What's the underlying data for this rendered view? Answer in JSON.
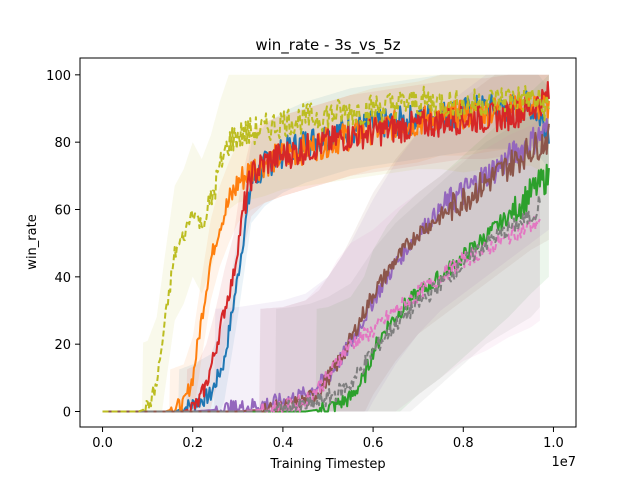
{
  "chart_data": {
    "type": "line",
    "title": "win_rate - 3s_vs_5z",
    "xlabel": "Training Timestep",
    "ylabel": "win_rate",
    "x_offset_label": "1e7",
    "xlim": [
      -0.05,
      1.05
    ],
    "ylim": [
      -4.6,
      105
    ],
    "x_ticks": [
      0.0,
      0.2,
      0.4,
      0.6,
      0.8,
      1.0
    ],
    "x_tick_labels": [
      "0.0",
      "0.2",
      "0.4",
      "0.6",
      "0.8",
      "1.0"
    ],
    "y_ticks": [
      0,
      20,
      40,
      60,
      80,
      100
    ],
    "y_tick_labels": [
      "0",
      "20",
      "40",
      "60",
      "80",
      "100"
    ],
    "grid": false,
    "legend": "none",
    "series": [
      {
        "color": "#1f77b4",
        "dash": "solid",
        "band": 12,
        "x": [
          0.0,
          0.16,
          0.2,
          0.24,
          0.27,
          0.3,
          0.33,
          0.36,
          0.4,
          0.45,
          0.5,
          0.55,
          0.6,
          0.65,
          0.7,
          0.75,
          0.8,
          0.85,
          0.9,
          0.95,
          0.99
        ],
        "y": [
          0,
          0,
          2,
          5,
          15,
          40,
          68,
          73,
          77,
          80,
          82,
          84,
          85,
          86,
          87,
          88,
          89,
          90,
          90,
          91,
          84
        ]
      },
      {
        "color": "#ff7f0e",
        "dash": "solid",
        "band": 12,
        "x": [
          0.0,
          0.14,
          0.18,
          0.2,
          0.22,
          0.24,
          0.26,
          0.28,
          0.3,
          0.33,
          0.36,
          0.4,
          0.45,
          0.5,
          0.55,
          0.6,
          0.65,
          0.7,
          0.75,
          0.8,
          0.85,
          0.9,
          0.95,
          0.99
        ],
        "y": [
          0,
          0,
          2,
          10,
          28,
          45,
          55,
          62,
          68,
          72,
          74,
          76,
          78,
          80,
          82,
          84,
          85,
          86,
          88,
          88,
          89,
          90,
          91,
          90
        ]
      },
      {
        "color": "#2ca02c",
        "dash": "solid",
        "band": 30,
        "x": [
          0.0,
          0.45,
          0.5,
          0.55,
          0.58,
          0.6,
          0.63,
          0.66,
          0.7,
          0.75,
          0.8,
          0.85,
          0.9,
          0.95,
          0.99
        ],
        "y": [
          0,
          0,
          1,
          4,
          10,
          18,
          25,
          30,
          35,
          40,
          46,
          52,
          58,
          65,
          70
        ]
      },
      {
        "color": "#d62728",
        "dash": "solid",
        "band": 12,
        "x": [
          0.0,
          0.18,
          0.21,
          0.23,
          0.25,
          0.27,
          0.29,
          0.31,
          0.33,
          0.36,
          0.4,
          0.45,
          0.5,
          0.55,
          0.6,
          0.65,
          0.7,
          0.75,
          0.8,
          0.85,
          0.9,
          0.95,
          0.99
        ],
        "y": [
          0,
          0,
          2,
          8,
          18,
          30,
          40,
          58,
          70,
          74,
          76,
          78,
          80,
          82,
          83,
          84,
          85,
          86,
          87,
          87,
          88,
          90,
          94
        ]
      },
      {
        "color": "#9467bd",
        "dash": "solid",
        "band": 30,
        "x": [
          0.0,
          0.2,
          0.3,
          0.35,
          0.4,
          0.45,
          0.5,
          0.55,
          0.6,
          0.65,
          0.7,
          0.75,
          0.8,
          0.85,
          0.9,
          0.95,
          0.99
        ],
        "y": [
          0,
          0,
          1,
          2,
          3,
          5,
          10,
          20,
          33,
          44,
          53,
          60,
          65,
          70,
          75,
          80,
          84
        ]
      },
      {
        "color": "#8c564b",
        "dash": "solid",
        "band": 30,
        "x": [
          0.0,
          0.3,
          0.4,
          0.45,
          0.48,
          0.5,
          0.53,
          0.56,
          0.6,
          0.65,
          0.7,
          0.75,
          0.8,
          0.85,
          0.9,
          0.95,
          0.99
        ],
        "y": [
          0,
          0,
          1,
          3,
          6,
          10,
          16,
          24,
          35,
          45,
          53,
          58,
          63,
          68,
          73,
          78,
          81
        ]
      },
      {
        "color": "#e377c2",
        "dash": "dashed",
        "band": 30,
        "x": [
          0.0,
          0.3,
          0.4,
          0.45,
          0.5,
          0.52,
          0.55,
          0.6,
          0.65,
          0.7,
          0.75,
          0.8,
          0.85,
          0.9,
          0.95,
          0.97
        ],
        "y": [
          0,
          0,
          1,
          3,
          10,
          15,
          20,
          24,
          30,
          35,
          40,
          45,
          48,
          52,
          55,
          57
        ]
      },
      {
        "color": "#7f7f7f",
        "dash": "dashed",
        "band": 30,
        "x": [
          0.0,
          0.35,
          0.42,
          0.46,
          0.5,
          0.55,
          0.6,
          0.65,
          0.7,
          0.75,
          0.8,
          0.85,
          0.9,
          0.95,
          0.97
        ],
        "y": [
          0,
          0,
          1,
          2,
          4,
          8,
          18,
          26,
          32,
          38,
          44,
          50,
          54,
          58,
          61
        ]
      },
      {
        "color": "#bcbd22",
        "dash": "dashed",
        "band": 20,
        "x": [
          0.0,
          0.08,
          0.1,
          0.12,
          0.14,
          0.16,
          0.18,
          0.2,
          0.22,
          0.24,
          0.26,
          0.28,
          0.3,
          0.33,
          0.36,
          0.4,
          0.45,
          0.5,
          0.55,
          0.6,
          0.65,
          0.7,
          0.75,
          0.8,
          0.85,
          0.9,
          0.95,
          0.99
        ],
        "y": [
          0,
          0,
          1,
          8,
          28,
          47,
          52,
          60,
          55,
          62,
          72,
          80,
          82,
          83,
          84,
          86,
          87,
          88,
          89,
          90,
          91,
          92,
          92,
          91,
          92,
          93,
          93,
          90
        ]
      }
    ]
  }
}
